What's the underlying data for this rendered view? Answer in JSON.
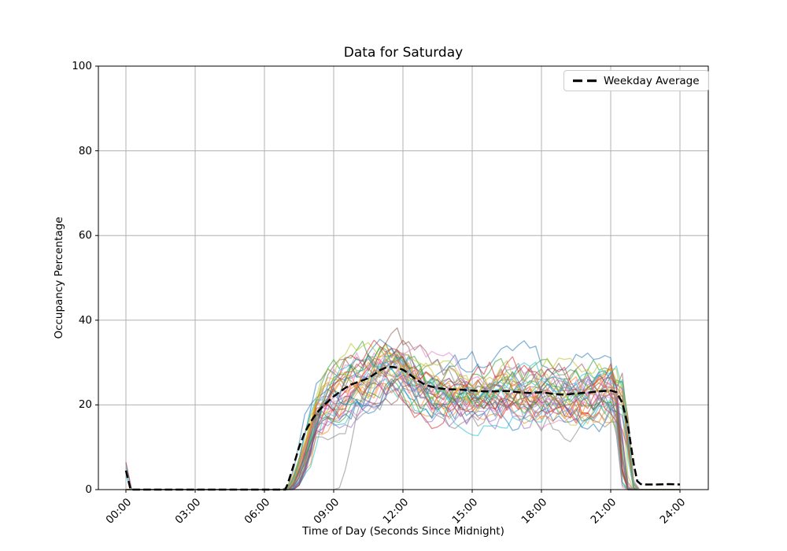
{
  "chart_data": {
    "type": "line",
    "title": "Data for Saturday",
    "xlabel": "Time of Day (Seconds Since Midnight)",
    "ylabel": "Occupancy Percentage",
    "x_tick_labels": [
      "00:00",
      "03:00",
      "06:00",
      "09:00",
      "12:00",
      "15:00",
      "18:00",
      "21:00",
      "24:00"
    ],
    "x_tick_hours": [
      0,
      3,
      6,
      9,
      12,
      15,
      18,
      21,
      24
    ],
    "y_ticks": [
      0,
      20,
      40,
      60,
      80,
      100
    ],
    "ylim": [
      0,
      100
    ],
    "grid": true,
    "colors": {
      "grid": "#b0b0b0",
      "axes": "#000000",
      "background": "#ffffff",
      "average_line": "#000000"
    },
    "legend": {
      "label": "Weekday Average",
      "location": "upper right"
    },
    "average_series": {
      "name": "Weekday Average",
      "style": "dashed",
      "linewidth": 2.5,
      "points": [
        [
          0.0,
          4.5
        ],
        [
          0.2,
          0
        ],
        [
          6.9,
          0
        ],
        [
          7.0,
          1.2
        ],
        [
          7.25,
          5.5
        ],
        [
          7.5,
          10
        ],
        [
          7.75,
          13.5
        ],
        [
          8.0,
          16
        ],
        [
          8.25,
          18
        ],
        [
          8.5,
          19.5
        ],
        [
          8.75,
          20.8
        ],
        [
          9.0,
          22
        ],
        [
          9.25,
          23
        ],
        [
          9.5,
          24
        ],
        [
          9.75,
          24.8
        ],
        [
          10.0,
          25.3
        ],
        [
          10.25,
          25.8
        ],
        [
          10.5,
          26.3
        ],
        [
          10.75,
          27.2
        ],
        [
          11.0,
          28.2
        ],
        [
          11.25,
          28.8
        ],
        [
          11.5,
          29
        ],
        [
          11.75,
          28.8
        ],
        [
          12.0,
          28.3
        ],
        [
          12.25,
          27.4
        ],
        [
          12.5,
          26.3
        ],
        [
          12.75,
          25.4
        ],
        [
          13.0,
          24.7
        ],
        [
          13.25,
          24.3
        ],
        [
          13.5,
          24
        ],
        [
          13.75,
          23.8
        ],
        [
          14.0,
          23.7
        ],
        [
          14.5,
          23.6
        ],
        [
          15.0,
          23.4
        ],
        [
          15.5,
          23.2
        ],
        [
          16.0,
          23.2
        ],
        [
          16.5,
          23.3
        ],
        [
          17.0,
          23.0
        ],
        [
          17.5,
          22.8
        ],
        [
          18.0,
          23.0
        ],
        [
          18.5,
          22.6
        ],
        [
          19.0,
          22.4
        ],
        [
          19.5,
          22.7
        ],
        [
          20.0,
          22.9
        ],
        [
          20.5,
          23.2
        ],
        [
          21.0,
          23.4
        ],
        [
          21.25,
          23.0
        ],
        [
          21.5,
          20.5
        ],
        [
          21.75,
          15
        ],
        [
          22.0,
          6
        ],
        [
          22.15,
          2
        ],
        [
          22.3,
          1.3
        ],
        [
          22.5,
          1.2
        ],
        [
          23.0,
          1.2
        ],
        [
          23.5,
          1.3
        ],
        [
          24.0,
          1.2
        ]
      ]
    },
    "individual_series": {
      "count": 40,
      "alpha": 0.55,
      "linewidth": 1.3,
      "palette": [
        "#1f77b4",
        "#ff7f0e",
        "#2ca02c",
        "#d62728",
        "#9467bd",
        "#8c564b",
        "#e377c2",
        "#7f7f7f",
        "#bcbd22",
        "#17becf"
      ],
      "seed": 7,
      "step_hours": 0.25,
      "start_hour": {
        "min": 6.85,
        "max": 7.3
      },
      "end_hour": {
        "min": 21.55,
        "max": 22.1
      },
      "late_start_series": {
        "index": 17,
        "hour": 9.15
      },
      "midnight_spike": {
        "probability": 0.08,
        "min": 3,
        "max": 7
      },
      "scale": {
        "min": 0.86,
        "max": 1.1
      },
      "bias_range": 8,
      "walk": {
        "step": 6,
        "decay": 0.75
      },
      "value_range": [
        0,
        44
      ]
    }
  }
}
